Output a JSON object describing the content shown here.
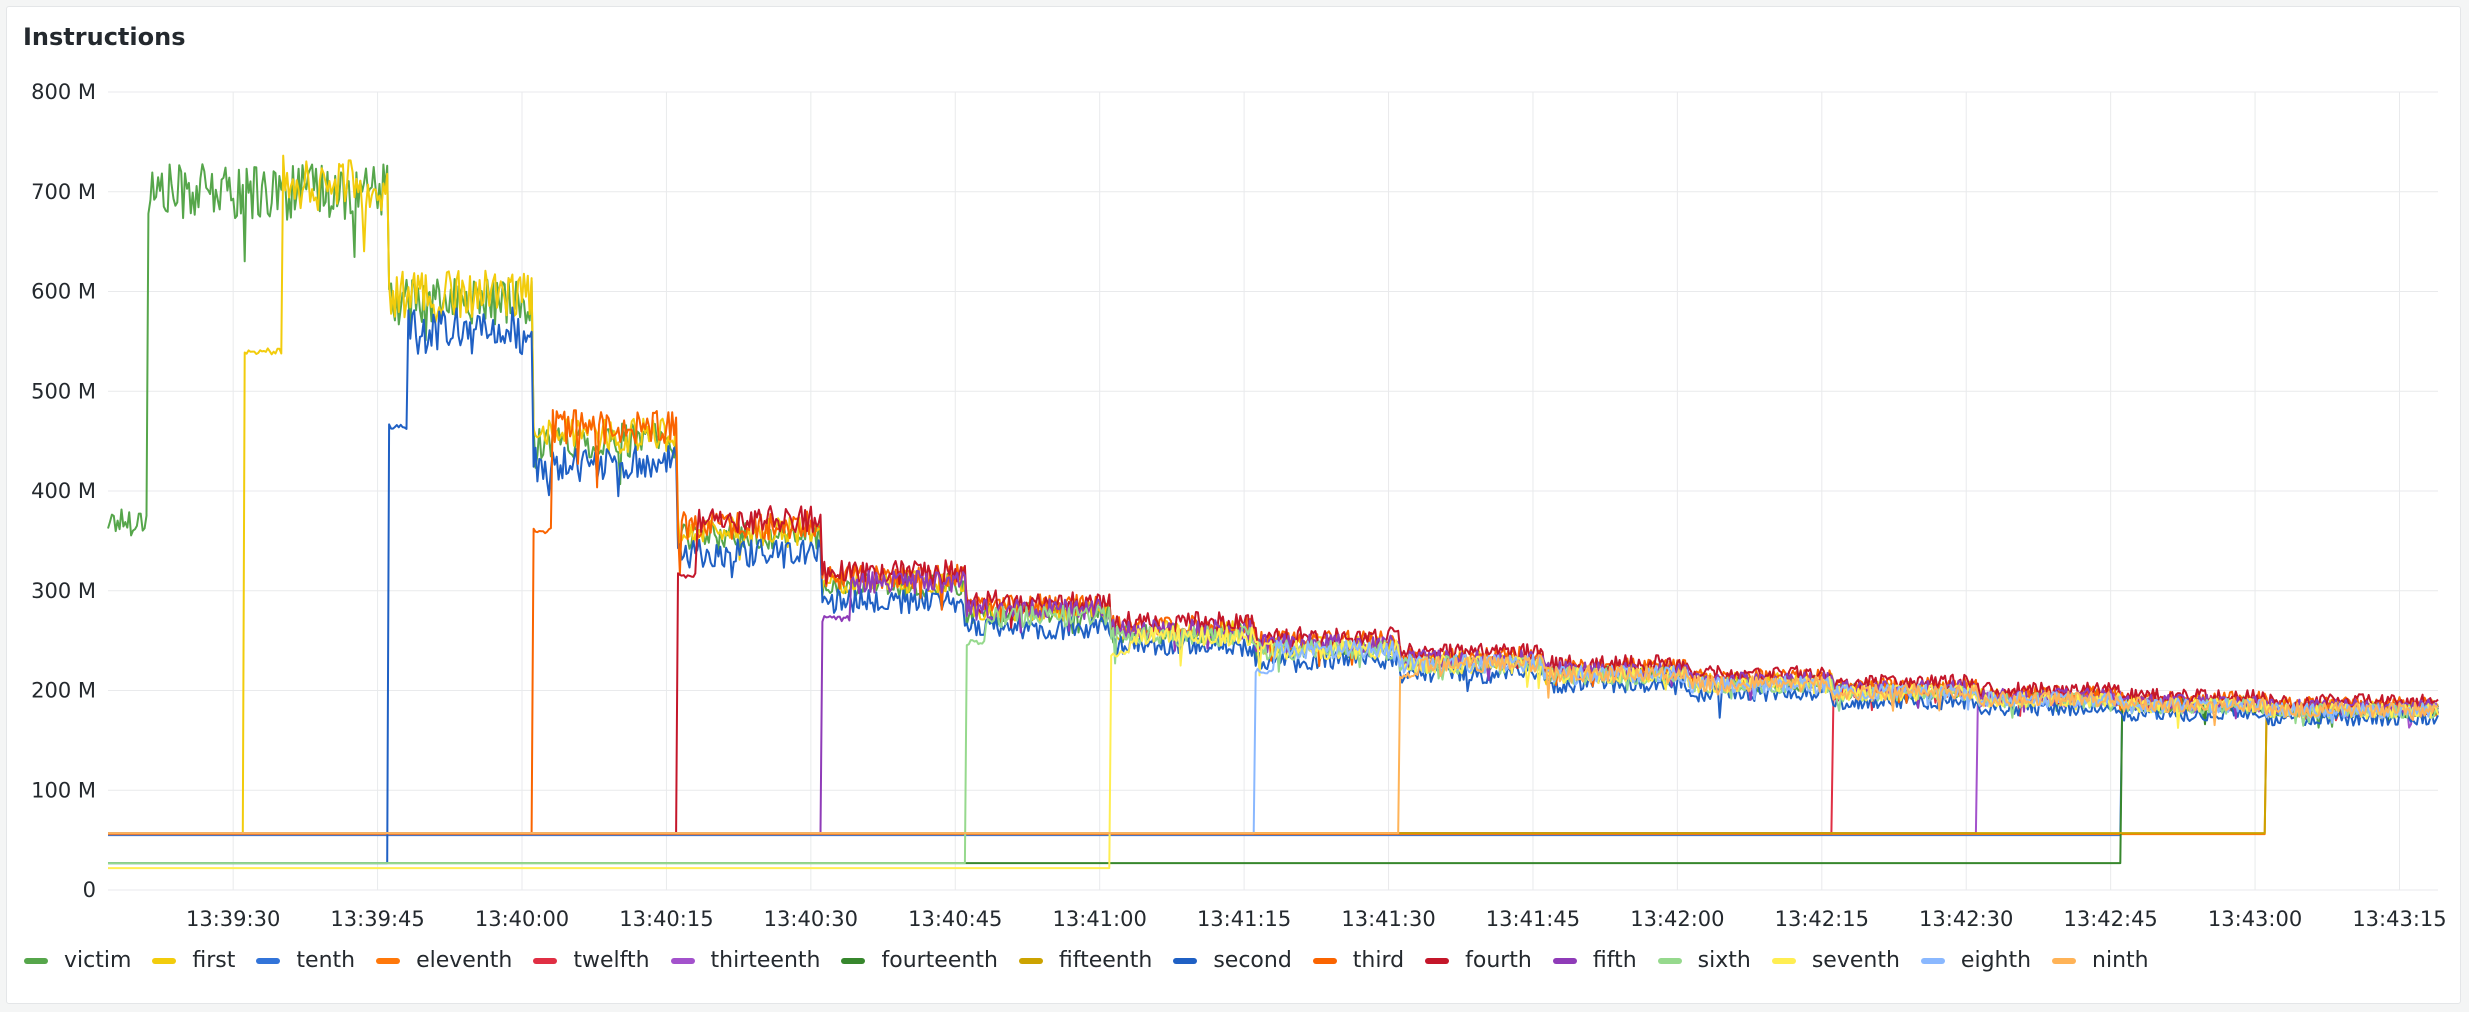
{
  "panel": {
    "title": "Instructions"
  },
  "chart_data": {
    "type": "line",
    "title": "Instructions",
    "xlabel": "",
    "ylabel": "",
    "ylim": [
      0,
      800
    ],
    "y_ticks": [
      0,
      100,
      200,
      300,
      400,
      500,
      600,
      700,
      800
    ],
    "y_tick_labels": [
      "0",
      "100 M",
      "200 M",
      "300 M",
      "400 M",
      "500 M",
      "600 M",
      "700 M",
      "800 M"
    ],
    "y_unit": "M",
    "x_unit": "s",
    "x_range": [
      "13:39:17",
      "13:43:19"
    ],
    "x_tick_labels": [
      "13:39:30",
      "13:39:45",
      "13:40:00",
      "13:40:15",
      "13:40:30",
      "13:40:45",
      "13:41:00",
      "13:41:15",
      "13:41:30",
      "13:41:45",
      "13:42:00",
      "13:42:15",
      "13:42:30",
      "13:42:45",
      "13:43:00",
      "13:43:15"
    ],
    "grid": true,
    "legend_position": "bottom",
    "phases": [
      {
        "start": "13:39:17",
        "end": "13:39:21",
        "level": 370
      },
      {
        "start": "13:39:21",
        "end": "13:39:46",
        "level": 700
      },
      {
        "start": "13:39:46",
        "end": "13:40:01",
        "level": 590
      },
      {
        "start": "13:40:01",
        "end": "13:40:16",
        "level": 450
      },
      {
        "start": "13:40:16",
        "end": "13:40:31",
        "level": 355
      },
      {
        "start": "13:40:31",
        "end": "13:40:46",
        "level": 305
      },
      {
        "start": "13:40:46",
        "end": "13:41:01",
        "level": 277
      },
      {
        "start": "13:41:01",
        "end": "13:41:16",
        "level": 257
      },
      {
        "start": "13:41:16",
        "end": "13:41:31",
        "level": 243
      },
      {
        "start": "13:41:31",
        "end": "13:41:46",
        "level": 228
      },
      {
        "start": "13:41:46",
        "end": "13:42:01",
        "level": 217
      },
      {
        "start": "13:42:01",
        "end": "13:42:16",
        "level": 207
      },
      {
        "start": "13:42:16",
        "end": "13:42:31",
        "level": 199
      },
      {
        "start": "13:42:31",
        "end": "13:42:46",
        "level": 192
      },
      {
        "start": "13:42:46",
        "end": "13:43:01",
        "level": 186
      },
      {
        "start": "13:43:01",
        "end": "13:43:19",
        "level": 181
      }
    ],
    "series": [
      {
        "name": "victim",
        "color": "#56a64b",
        "start": "13:39:17",
        "idle": null,
        "ramp": [],
        "offset": 0
      },
      {
        "name": "first",
        "color": "#f2cc0c",
        "start": "13:39:31",
        "idle": 57,
        "ramp": [
          {
            "until": "13:39:35",
            "value": 540
          }
        ],
        "offset": 5
      },
      {
        "name": "tenth",
        "color": "#3274d9",
        "start": "13:42:46",
        "idle": 55,
        "ramp": [],
        "offset": 0
      },
      {
        "name": "eleventh",
        "color": "#ff780a",
        "start": "13:43:01",
        "idle": 56,
        "ramp": [],
        "offset": 0
      },
      {
        "name": "twelfth",
        "color": "#e02f44",
        "start": "13:42:16",
        "idle": 57,
        "ramp": [
          {
            "until": "13:42:17",
            "value": 190
          }
        ],
        "offset": 3
      },
      {
        "name": "thirteenth",
        "color": "#a352cc",
        "start": "13:42:31",
        "idle": 57,
        "ramp": [
          {
            "until": "13:42:32",
            "value": 185
          }
        ],
        "offset": -2
      },
      {
        "name": "fourteenth",
        "color": "#37872d",
        "start": "13:42:46",
        "idle": 27,
        "ramp": [],
        "offset": -3
      },
      {
        "name": "fifteenth",
        "color": "#cca300",
        "start": "13:43:01",
        "idle": 57,
        "ramp": [],
        "offset": -1
      },
      {
        "name": "second",
        "color": "#1f60c4",
        "start": "13:39:46",
        "idle": 27,
        "ramp": [
          {
            "until": "13:39:48",
            "value": 465
          }
        ],
        "offset": -20
      },
      {
        "name": "third",
        "color": "#fa6400",
        "start": "13:40:01",
        "idle": 57,
        "ramp": [
          {
            "until": "13:40:03",
            "value": 360
          }
        ],
        "offset": 12
      },
      {
        "name": "fourth",
        "color": "#c4162a",
        "start": "13:40:16",
        "idle": 57,
        "ramp": [
          {
            "until": "13:40:18",
            "value": 315
          }
        ],
        "offset": 18
      },
      {
        "name": "fifth",
        "color": "#8f3bb8",
        "start": "13:40:31",
        "idle": 57,
        "ramp": [
          {
            "until": "13:40:34",
            "value": 272
          }
        ],
        "offset": 6
      },
      {
        "name": "sixth",
        "color": "#96d98d",
        "start": "13:40:46",
        "idle": 27,
        "ramp": [
          {
            "until": "13:40:48",
            "value": 248
          }
        ],
        "offset": -4
      },
      {
        "name": "seventh",
        "color": "#ffee52",
        "start": "13:41:01",
        "idle": 22,
        "ramp": [
          {
            "until": "13:41:03",
            "value": 237
          }
        ],
        "offset": -3
      },
      {
        "name": "eighth",
        "color": "#8ab8ff",
        "start": "13:41:16",
        "idle": 57,
        "ramp": [
          {
            "until": "13:41:18",
            "value": 220
          }
        ],
        "offset": -2
      },
      {
        "name": "ninth",
        "color": "#ffb357",
        "start": "13:41:31",
        "idle": 57,
        "ramp": [
          {
            "until": "13:41:33",
            "value": 215
          }
        ],
        "offset": -1
      }
    ]
  }
}
